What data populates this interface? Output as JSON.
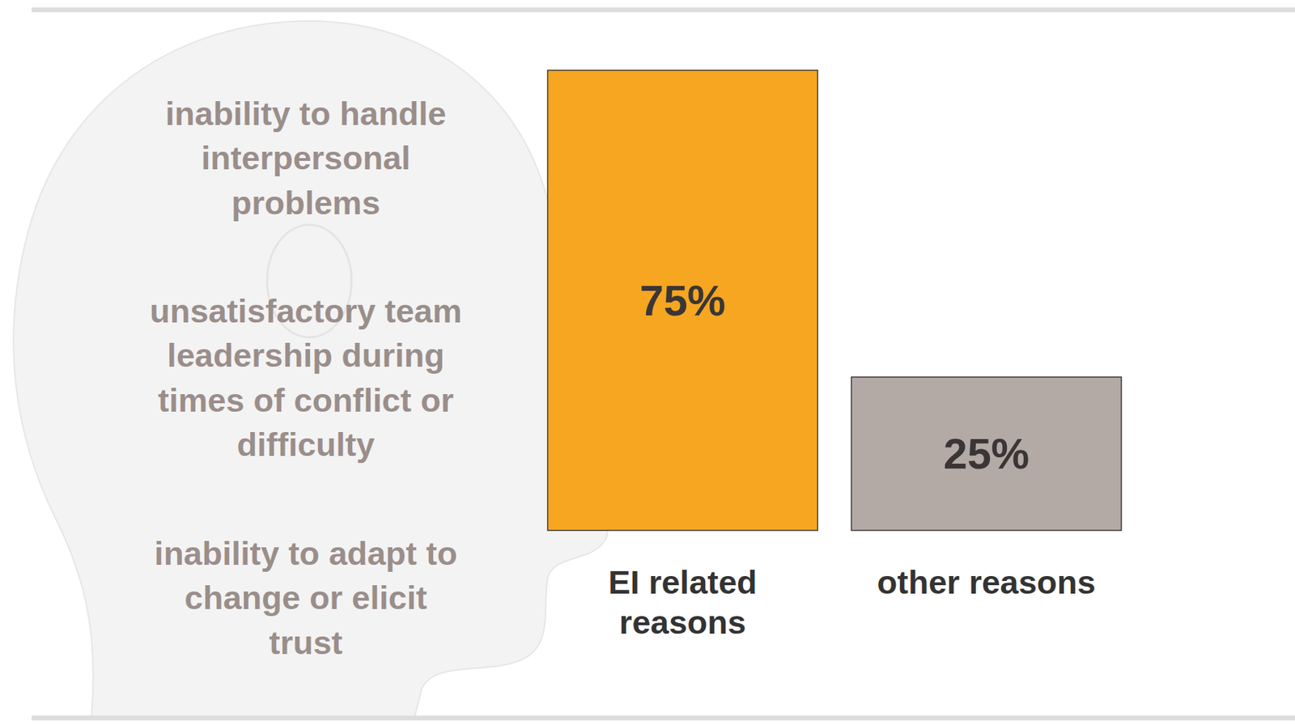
{
  "chart_data": {
    "type": "bar",
    "categories": [
      "EI related reasons",
      "other reasons"
    ],
    "values": [
      75,
      25
    ],
    "value_labels": [
      "75%",
      "25%"
    ],
    "colors": [
      "#f6a620",
      "#b3a9a5"
    ],
    "ylim": [
      0,
      75
    ],
    "data_labels": true,
    "tick_labels": false,
    "grid": false,
    "annotations": [
      [
        "inability to handle",
        "interpersonal",
        "problems"
      ],
      [
        "unsatisfactory team",
        "leadership during",
        "times of conflict or",
        "difficulty"
      ],
      [
        "inability to adapt to",
        "change or elicit",
        "trust"
      ]
    ]
  }
}
